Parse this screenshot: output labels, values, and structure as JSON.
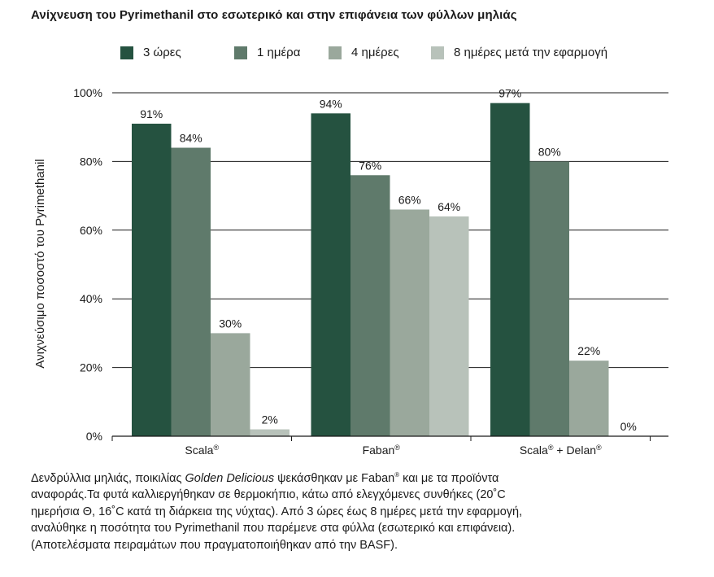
{
  "title": "Ανίχνευση του Pyrimethanil στο εσωτερικό και στην επιφάνεια των φύλλων μηλιάς",
  "chart_data": {
    "type": "bar",
    "categories": [
      "Scala®",
      "Faban®",
      "Scala® + Delan®"
    ],
    "series": [
      {
        "name": "3 ώρες",
        "values": [
          91,
          94,
          97
        ],
        "color": "#255240"
      },
      {
        "name": "1 ημέρα",
        "values": [
          84,
          76,
          80
        ],
        "color": "#5f7a6b"
      },
      {
        "name": "4 ημέρες",
        "values": [
          30,
          66,
          22
        ],
        "color": "#9aa89c"
      },
      {
        "name": "8 ημέρες μετά την εφαρμογή",
        "values": [
          2,
          64,
          0
        ],
        "color": "#b8c2ba"
      }
    ],
    "data_labels": [
      [
        "91%",
        "84%",
        "30%",
        "2%"
      ],
      [
        "94%",
        "76%",
        "66%",
        "64%"
      ],
      [
        "97%",
        "80%",
        "22%",
        "0%"
      ]
    ],
    "yticks": [
      "0%",
      "20%",
      "40%",
      "60%",
      "80%",
      "100%"
    ],
    "ylim": [
      0,
      100
    ],
    "ylabel": "Ανιχνεύσιμο ποσοστό του Pyrimethanil",
    "xlabel": "",
    "grid": true,
    "legend_position": "top"
  },
  "caption": {
    "line1_a": "Δενδρύλλια μηλιάς, ποικιλίας ",
    "line1_italic": "Golden Delicious",
    "line1_b": " ψεκάσθηκαν με Faban",
    "line1_sup": "®",
    "line1_c": " και με τα προϊόντα",
    "line2": "αναφοράς.Τα φυτά καλλιεργήθηκαν σε θερμοκήπιο, κάτω από ελεγχόμενες συνθήκες (20˚C",
    "line3": "ημερήσια Θ, 16˚C κατά τη διάρκεια της νύχτας). Από 3 ώρες έως 8 ημέρες μετά την εφαρμογή,",
    "line4": "αναλύθηκε η ποσότητα του Pyrimethanil που παρέμενε στα φύλλα (εσωτερικό και επιφάνεια).",
    "line5": "(Αποτελέσματα πειραμάτων που πραγματοποιήθηκαν από την BASF)."
  }
}
